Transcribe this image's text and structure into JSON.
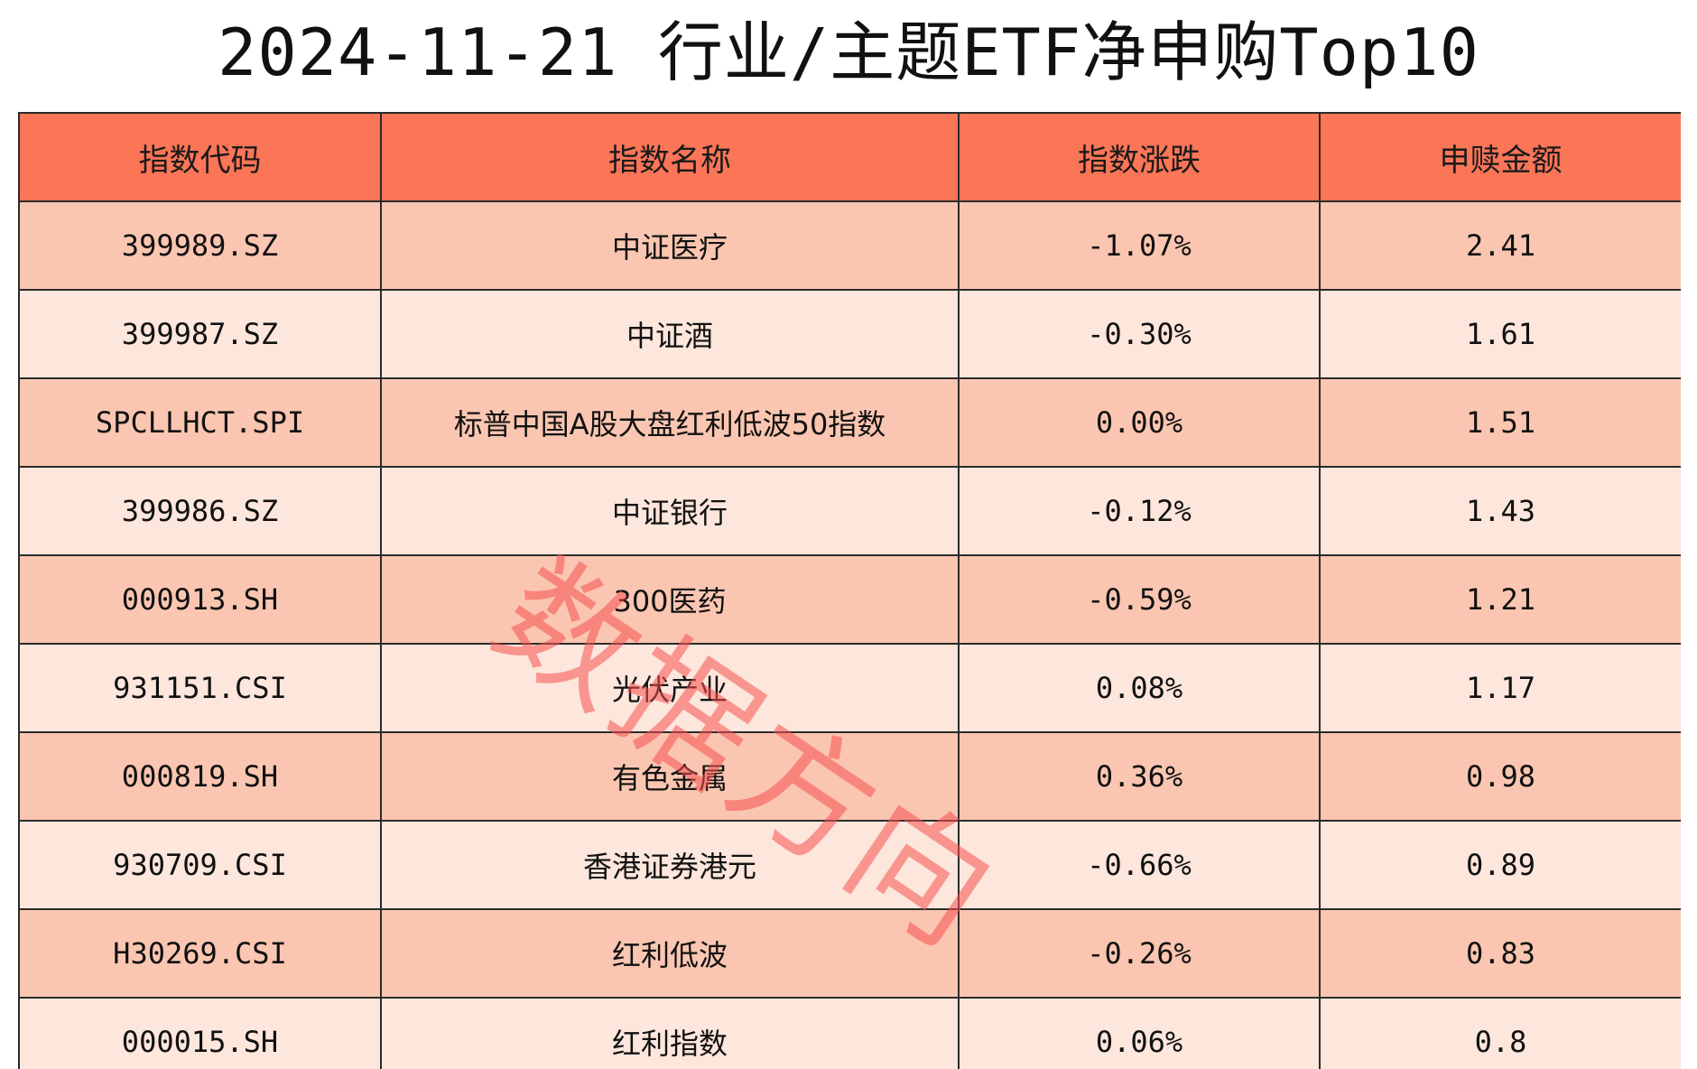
{
  "chart_data": {
    "type": "table",
    "title": "2024-11-21 行业/主题ETF净申购Top10",
    "columns": [
      "指数代码",
      "指数名称",
      "指数涨跌",
      "申赎金额"
    ],
    "rows": [
      [
        "399989.SZ",
        "中证医疗",
        "-1.07%",
        "2.41"
      ],
      [
        "399987.SZ",
        "中证酒",
        "-0.30%",
        "1.61"
      ],
      [
        "SPCLLHCT.SPI",
        "标普中国A股大盘红利低波50指数",
        "0.00%",
        "1.51"
      ],
      [
        "399986.SZ",
        "中证银行",
        "-0.12%",
        "1.43"
      ],
      [
        "000913.SH",
        "300医药",
        "-0.59%",
        "1.21"
      ],
      [
        "931151.CSI",
        "光伏产业",
        "0.08%",
        "1.17"
      ],
      [
        "000819.SH",
        "有色金属",
        "0.36%",
        "0.98"
      ],
      [
        "930709.CSI",
        "香港证券港元",
        "-0.66%",
        "0.89"
      ],
      [
        "H30269.CSI",
        "红利低波",
        "-0.26%",
        "0.83"
      ],
      [
        "000015.SH",
        "红利指数",
        "0.06%",
        "0.8"
      ]
    ]
  },
  "watermark": "数据方向",
  "colors": {
    "header": "#fb7557",
    "row_odd": "#fbc6b1",
    "row_even": "#fde6dc",
    "watermark": "#f65050"
  }
}
